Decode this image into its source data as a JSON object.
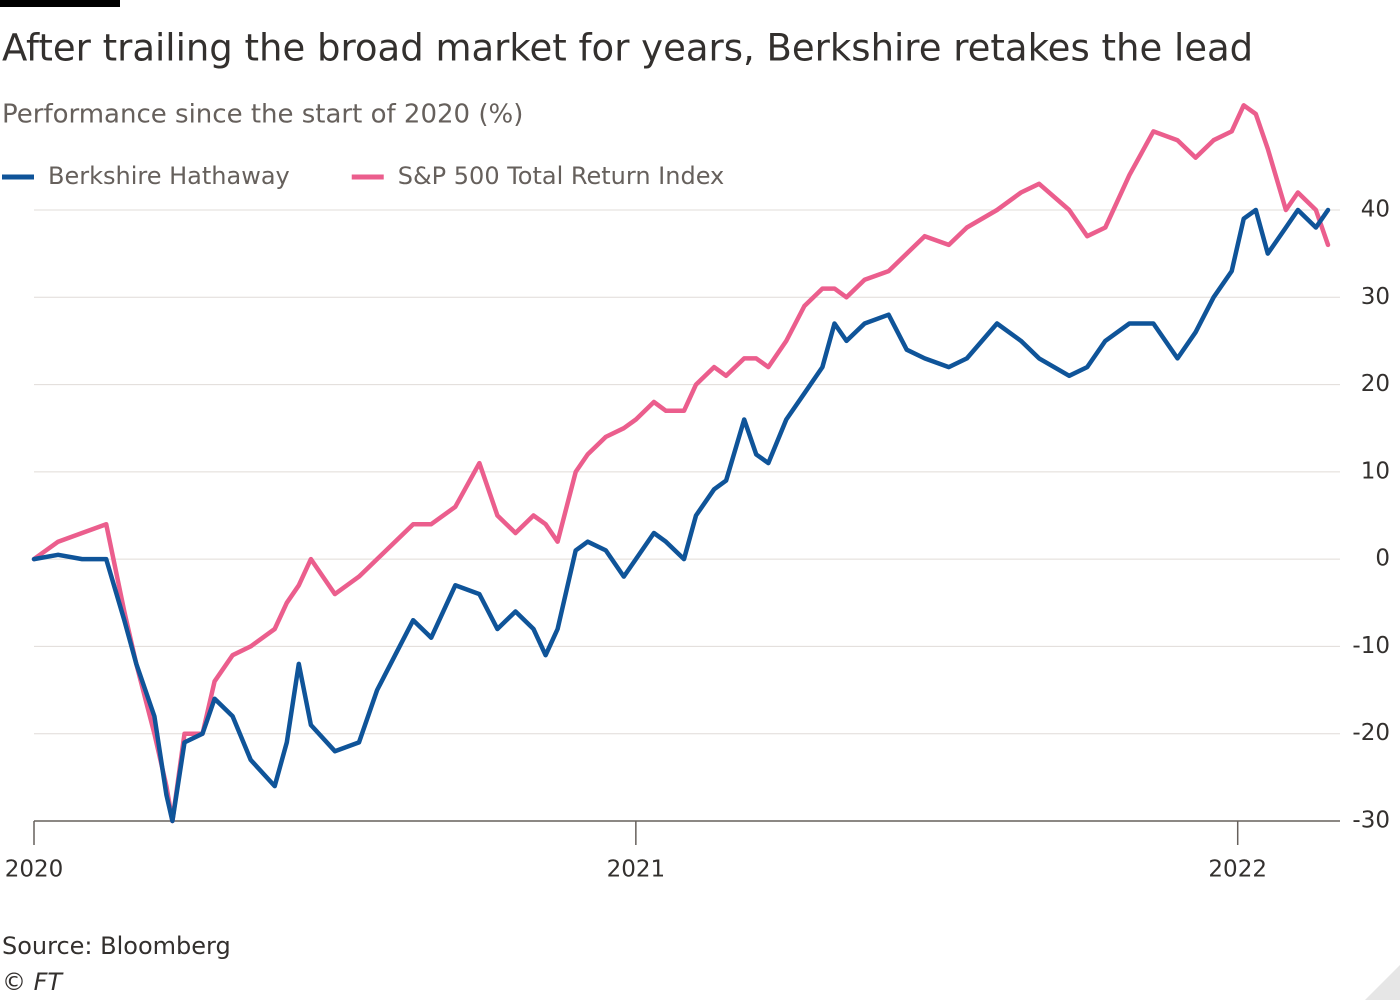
{
  "chart_data": {
    "type": "line",
    "title": "After trailing the broad market for years, Berkshire retakes the lead",
    "subtitle": "Performance since the start of 2020 (%)",
    "source": "Source: Bloomberg",
    "credit": "© FT",
    "x": [
      2020.0,
      2020.04,
      2020.08,
      2020.12,
      2020.15,
      2020.17,
      2020.2,
      2020.22,
      2020.23,
      2020.25,
      2020.28,
      2020.3,
      2020.33,
      2020.36,
      2020.4,
      2020.42,
      2020.44,
      2020.46,
      2020.5,
      2020.54,
      2020.57,
      2020.6,
      2020.63,
      2020.66,
      2020.7,
      2020.74,
      2020.77,
      2020.8,
      2020.83,
      2020.85,
      2020.87,
      2020.9,
      2020.92,
      2020.95,
      2020.98,
      2021.0,
      2021.03,
      2021.05,
      2021.08,
      2021.1,
      2021.13,
      2021.15,
      2021.18,
      2021.2,
      2021.22,
      2021.25,
      2021.28,
      2021.31,
      2021.33,
      2021.35,
      2021.38,
      2021.42,
      2021.45,
      2021.48,
      2021.52,
      2021.55,
      2021.6,
      2021.64,
      2021.67,
      2021.72,
      2021.75,
      2021.78,
      2021.82,
      2021.86,
      2021.9,
      2021.93,
      2021.96,
      2021.99,
      2022.01,
      2022.03,
      2022.05,
      2022.08,
      2022.1,
      2022.13,
      2022.15
    ],
    "series": [
      {
        "name": "Berkshire Hathaway",
        "color": "#0f5499",
        "values": [
          0,
          0.5,
          0,
          0,
          -7,
          -12,
          -18,
          -27,
          -30,
          -21,
          -20,
          -16,
          -18,
          -23,
          -26,
          -21,
          -12,
          -19,
          -22,
          -21,
          -15,
          -11,
          -7,
          -9,
          -3,
          -4,
          -8,
          -6,
          -8,
          -11,
          -8,
          1,
          2,
          1,
          -2,
          0,
          3,
          2,
          0,
          5,
          8,
          9,
          16,
          12,
          11,
          16,
          19,
          22,
          27,
          25,
          27,
          28,
          24,
          23,
          22,
          23,
          27,
          25,
          23,
          21,
          22,
          25,
          27,
          27,
          23,
          26,
          30,
          33,
          39,
          40,
          35,
          38,
          40,
          38,
          40
        ]
      },
      {
        "name": "S&P 500 Total Return Index",
        "color": "#eb5e8d",
        "values": [
          0,
          2,
          3,
          4,
          -6,
          -12,
          -20,
          -26,
          -30,
          -20,
          -20,
          -14,
          -11,
          -10,
          -8,
          -5,
          -3,
          0,
          -4,
          -2,
          0,
          2,
          4,
          4,
          6,
          11,
          5,
          3,
          5,
          4,
          2,
          10,
          12,
          14,
          15,
          16,
          18,
          17,
          17,
          20,
          22,
          21,
          23,
          23,
          22,
          25,
          29,
          31,
          31,
          30,
          32,
          33,
          35,
          37,
          36,
          38,
          40,
          42,
          43,
          40,
          37,
          38,
          44,
          49,
          48,
          46,
          48,
          49,
          52,
          51,
          47,
          40,
          42,
          40,
          36
        ]
      }
    ],
    "xlim": [
      2020,
      2022.16
    ],
    "xticks": [
      2020,
      2021,
      2022
    ],
    "ylim": [
      -30,
      52
    ],
    "yticks": [
      -30,
      -20,
      -10,
      0,
      10,
      20,
      30,
      40
    ],
    "grid": true
  }
}
